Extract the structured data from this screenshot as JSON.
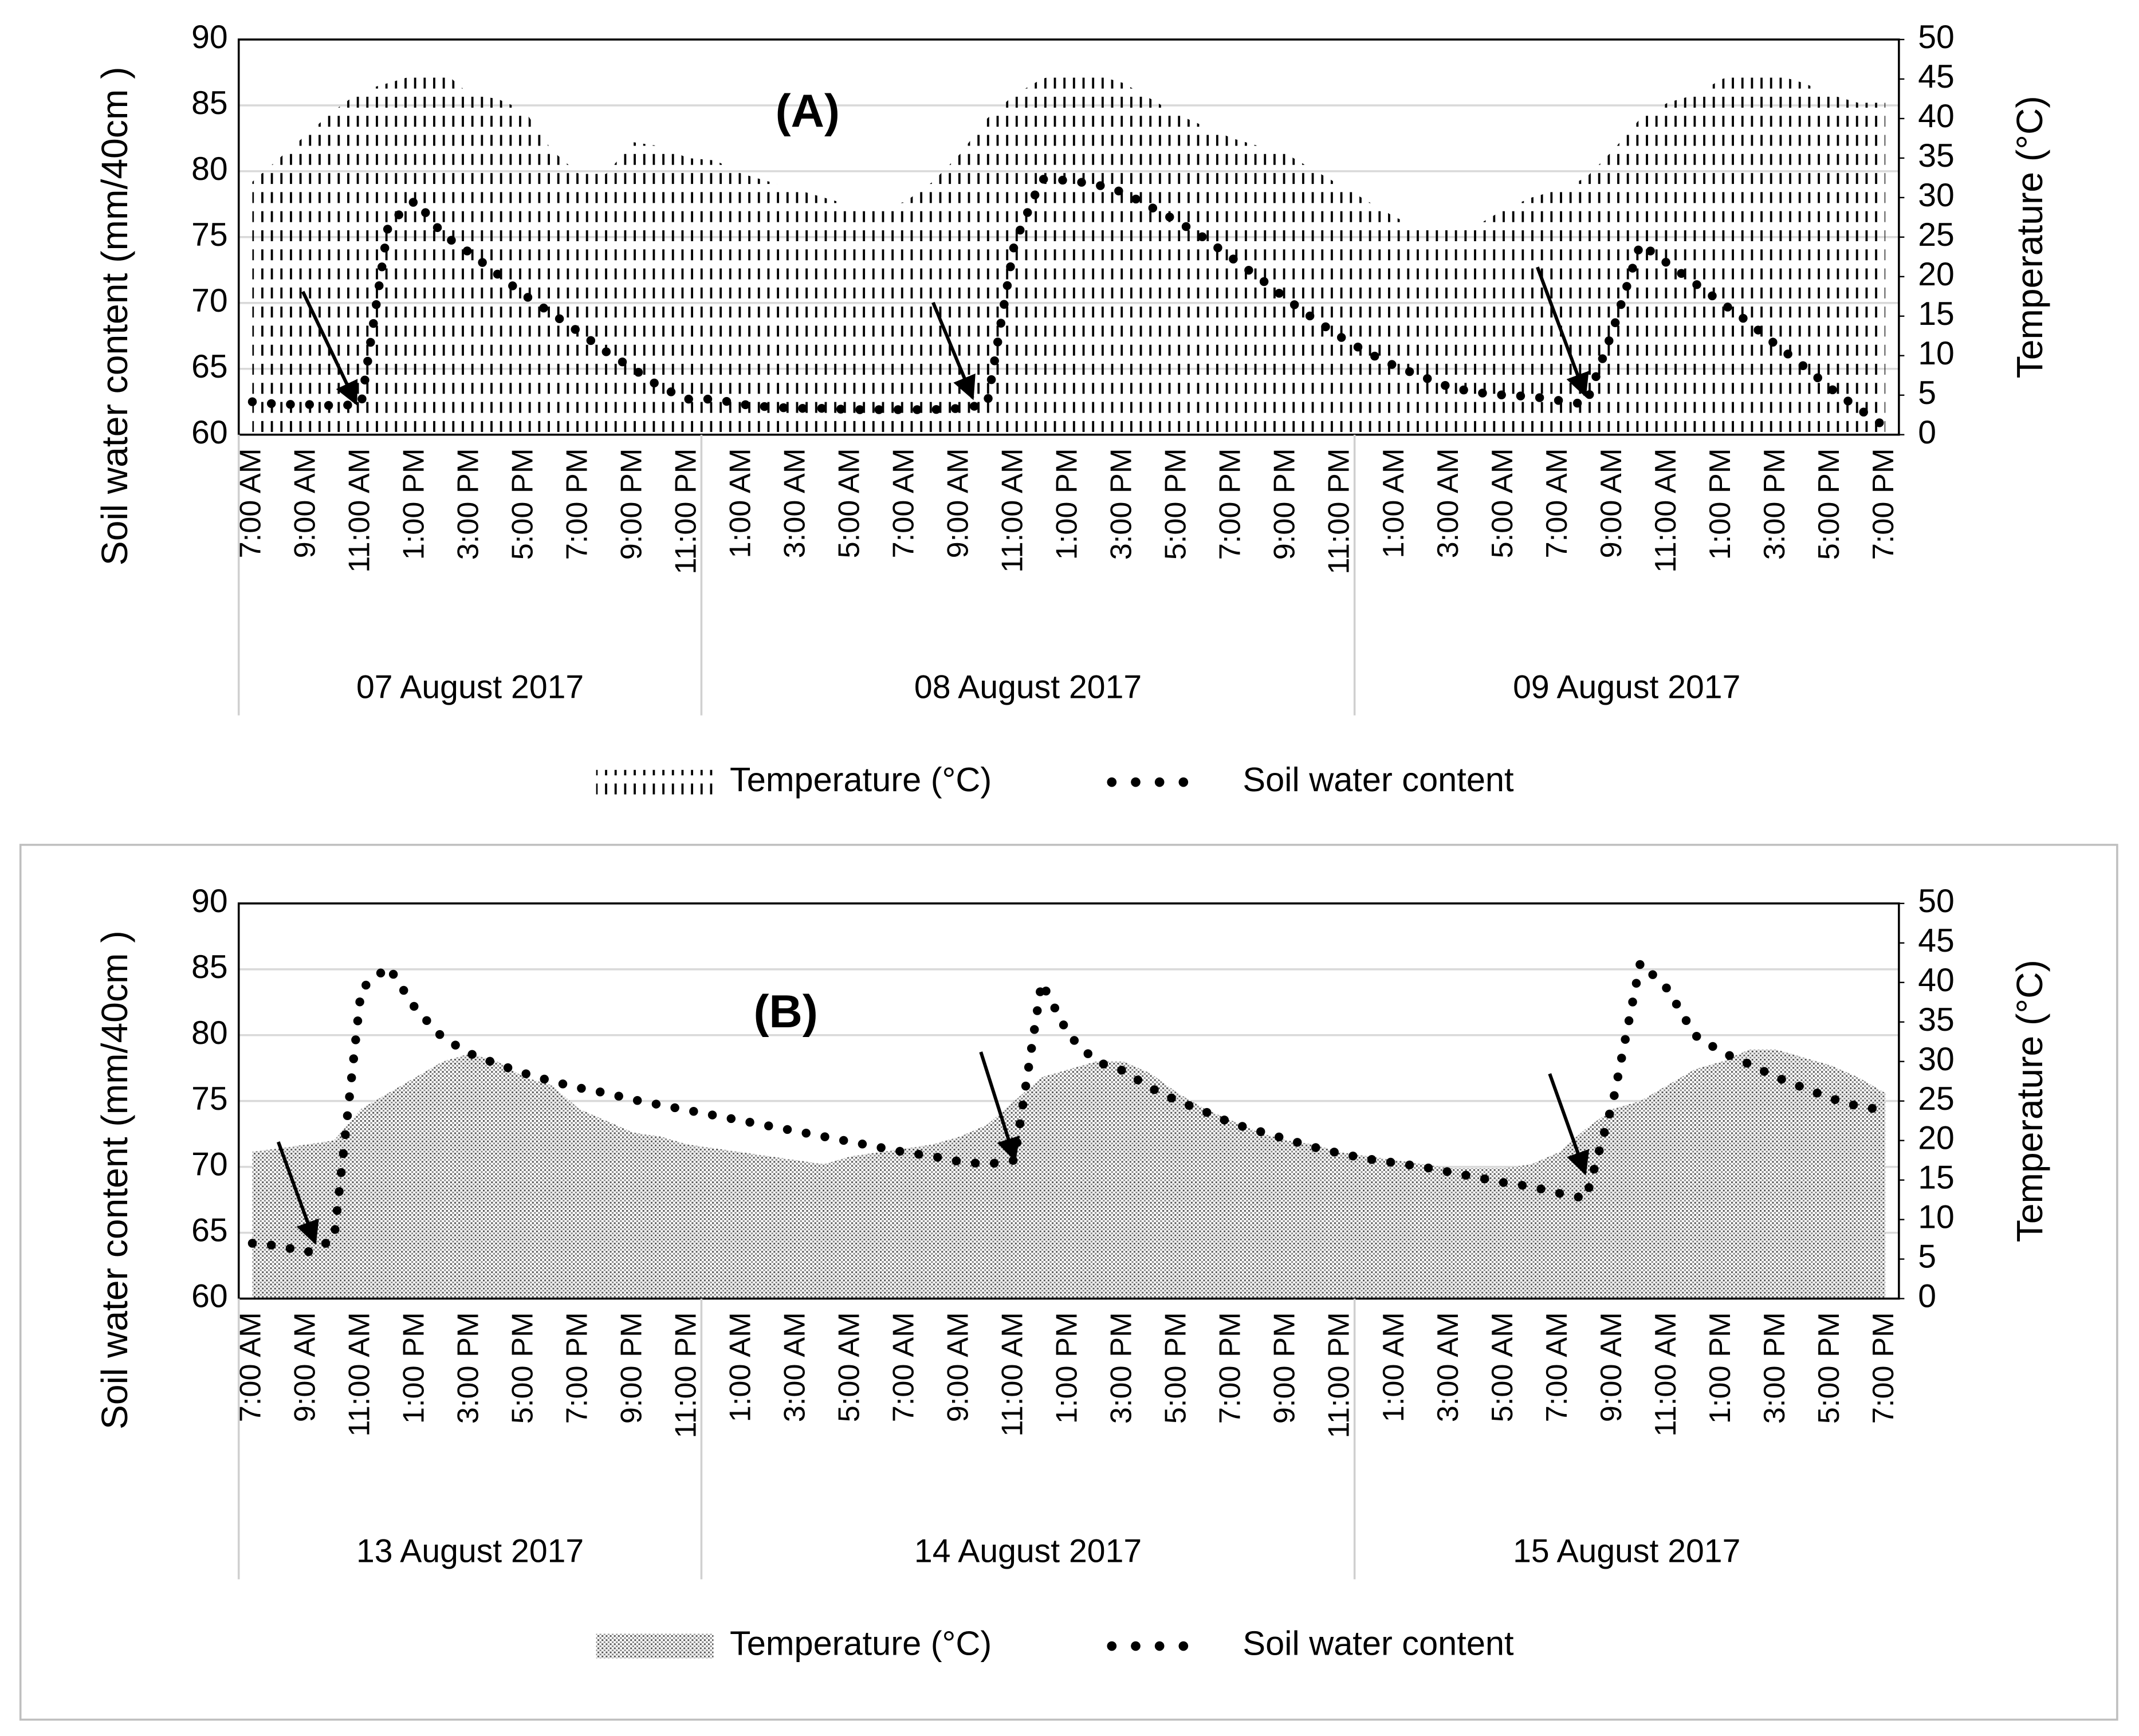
{
  "chart_data": [
    {
      "type": "combo",
      "annotation": "(A)",
      "ylabel": "Soil water content (mm/40cm )",
      "y2label": "Temperature (°C)",
      "categories": [
        "7:00 AM",
        null,
        "9:00 AM",
        null,
        "11:00 AM",
        null,
        "1:00 PM",
        null,
        "3:00 PM",
        null,
        "5:00 PM",
        null,
        "7:00 PM",
        null,
        "9:00 PM",
        null,
        "11:00 PM",
        null,
        "1:00 AM",
        null,
        "3:00 AM",
        null,
        "5:00 AM",
        null,
        "7:00 AM",
        null,
        "9:00 AM",
        null,
        "11:00 AM",
        null,
        "1:00 PM",
        null,
        "3:00 PM",
        null,
        "5:00 PM",
        null,
        "7:00 PM",
        null,
        "9:00 PM",
        null,
        "11:00 PM",
        null,
        "1:00 AM",
        null,
        "3:00 AM",
        null,
        "5:00 AM",
        null,
        "7:00 AM",
        null,
        "9:00 AM",
        null,
        "11:00 AM",
        null,
        "1:00 PM",
        null,
        "3:00 PM",
        null,
        "5:00 PM",
        null,
        "7:00 PM"
      ],
      "groups": [
        {
          "name": "07 August 2017",
          "size": 17
        },
        {
          "name": "08 August 2017",
          "size": 24
        },
        {
          "name": "09 August 2017",
          "size": 20
        }
      ],
      "series": [
        {
          "name": "Temperature (°C)",
          "type": "area",
          "axis": "y2",
          "pattern": "dash",
          "color": "#000000",
          "values": [
            32,
            35,
            38,
            41,
            43.5,
            44.5,
            45.5,
            46,
            43,
            42.5,
            41,
            36,
            33,
            33,
            37,
            36.5,
            35,
            34.7,
            33,
            32,
            31,
            30,
            29,
            28.5,
            29.5,
            32,
            35.5,
            40,
            43,
            45,
            46,
            45.5,
            44.5,
            42.5,
            40.5,
            39,
            37.5,
            36.5,
            35.5,
            33.5,
            31.5,
            29.5,
            27.5,
            26,
            26,
            26.5,
            28.5,
            30,
            31,
            32.5,
            36,
            40,
            42,
            43,
            45,
            46,
            45.5,
            44.5,
            43,
            42,
            42
          ]
        },
        {
          "name": "Soil water content",
          "type": "line",
          "color": "#000000",
          "values": [
            62.5,
            62.3,
            62.3,
            62.2,
            62.3,
            76,
            77.8,
            75.2,
            73.8,
            72.2,
            70.6,
            69.2,
            67.8,
            66.3,
            65,
            63.6,
            62.7,
            62.7,
            62.3,
            62.1,
            62,
            62,
            61.9,
            61.9,
            61.9,
            61.9,
            62,
            62.3,
            74.5,
            79.4,
            79.3,
            79,
            78.4,
            77.3,
            76.2,
            74.9,
            73.4,
            71.9,
            70.3,
            68.8,
            67.4,
            66.2,
            65.2,
            64.4,
            63.6,
            63.2,
            63,
            62.9,
            62.6,
            62.3,
            68,
            74.5,
            73,
            71.5,
            70,
            68.5,
            66.8,
            65.2,
            63.5,
            62,
            60.6
          ]
        }
      ],
      "ylim": [
        60,
        90
      ],
      "yticks": [
        60,
        65,
        70,
        75,
        80,
        85,
        90
      ],
      "y2lim": [
        0,
        50
      ],
      "y2ticks": [
        0,
        5,
        10,
        15,
        20,
        25,
        30,
        35,
        40,
        45,
        50
      ],
      "grid": true
    },
    {
      "type": "combo",
      "annotation": "(B)",
      "ylabel": "Soil water content (mm/40cm )",
      "y2label": "Temperature (°C)",
      "categories": [
        "7:00 AM",
        null,
        "9:00 AM",
        null,
        "11:00 AM",
        null,
        "1:00 PM",
        null,
        "3:00 PM",
        null,
        "5:00 PM",
        null,
        "7:00 PM",
        null,
        "9:00 PM",
        null,
        "11:00 PM",
        null,
        "1:00 AM",
        null,
        "3:00 AM",
        null,
        "5:00 AM",
        null,
        "7:00 AM",
        null,
        "9:00 AM",
        null,
        "11:00 AM",
        null,
        "1:00 PM",
        null,
        "3:00 PM",
        null,
        "5:00 PM",
        null,
        "7:00 PM",
        null,
        "9:00 PM",
        null,
        "11:00 PM",
        null,
        "1:00 AM",
        null,
        "3:00 AM",
        null,
        "5:00 AM",
        null,
        "7:00 AM",
        null,
        "9:00 AM",
        null,
        "11:00 AM",
        null,
        "1:00 PM",
        null,
        "3:00 PM",
        null,
        "5:00 PM",
        null,
        "7:00 PM"
      ],
      "groups": [
        {
          "name": "13 August 2017",
          "size": 17
        },
        {
          "name": "14 August 2017",
          "size": 24
        },
        {
          "name": "15 August 2017",
          "size": 20
        }
      ],
      "series": [
        {
          "name": "Temperature (°C)",
          "type": "area",
          "axis": "y2",
          "pattern": "dots",
          "color": "#000000",
          "values": [
            18.6,
            19,
            19.5,
            20,
            24,
            26,
            28,
            30,
            31,
            30,
            28,
            27,
            24,
            22.5,
            21,
            20.5,
            19.5,
            19,
            18.5,
            18,
            17.5,
            17,
            18,
            18.5,
            19,
            19.5,
            20.5,
            22,
            25,
            28,
            29,
            30,
            30,
            28.5,
            26,
            24,
            22.5,
            21,
            20,
            19.5,
            18.5,
            18,
            17.5,
            17,
            16.5,
            16.5,
            16.5,
            17,
            18.5,
            21.5,
            24,
            25,
            27,
            29,
            30,
            31.5,
            31.5,
            30.5,
            29.5,
            28,
            26
          ]
        },
        {
          "name": "Soil water content",
          "type": "line",
          "color": "#000000",
          "values": [
            64.2,
            64,
            63.5,
            64.5,
            83.5,
            85.2,
            82,
            79.8,
            78.6,
            77.8,
            77.1,
            76.5,
            76,
            75.6,
            75.1,
            74.7,
            74.3,
            73.9,
            73.5,
            73.1,
            72.7,
            72.3,
            71.9,
            71.5,
            71.1,
            70.8,
            70.4,
            70.2,
            70.5,
            84,
            80,
            78,
            77.3,
            76,
            75,
            74.2,
            73.3,
            72.7,
            72.1,
            71.5,
            71,
            70.6,
            70.3,
            70,
            69.6,
            69.2,
            68.8,
            68.5,
            68,
            67.6,
            75,
            85.5,
            83.5,
            80,
            78.7,
            77.8,
            76.8,
            76,
            75.2,
            74.6,
            74.3
          ]
        }
      ],
      "ylim": [
        60,
        90
      ],
      "yticks": [
        60,
        65,
        70,
        75,
        80,
        85,
        90
      ],
      "y2lim": [
        0,
        50
      ],
      "y2ticks": [
        0,
        5,
        10,
        15,
        20,
        25,
        30,
        35,
        40,
        45,
        50
      ],
      "grid": true
    }
  ]
}
